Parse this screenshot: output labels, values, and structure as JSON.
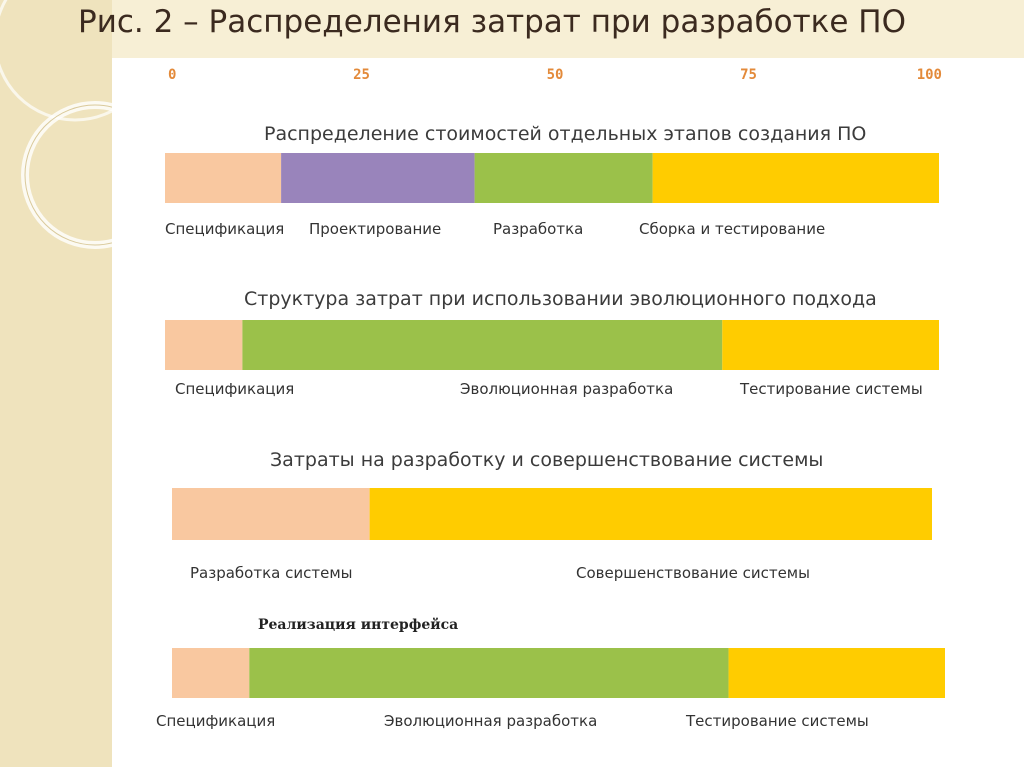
{
  "slide_title": "Рис.  2 – Распределения затрат при разработке ПО",
  "colors": {
    "spec": "#f9c8a0",
    "design": "#9984bb",
    "dev": "#9bc14a",
    "test": "#ffcc00"
  },
  "chart_data": {
    "type": "bar",
    "orientation": "horizontal-stacked",
    "title": "Рис.  2 – Распределения затрат при разработке ПО",
    "xlim": [
      0,
      100
    ],
    "xticks": [
      "0",
      "25",
      "50",
      "75",
      "100"
    ],
    "grid": false,
    "panels": [
      {
        "title": "Распределение стоимостей отдельных этапов создания ПО",
        "segments": [
          {
            "label": "Спецификация",
            "value": 15,
            "color": "#f9c8a0"
          },
          {
            "label": "Проектирование",
            "value": 25,
            "color": "#9984bb"
          },
          {
            "label": "Разработка",
            "value": 23,
            "color": "#9bc14a"
          },
          {
            "label": "Сборка и тестирование",
            "value": 37,
            "color": "#ffcc00"
          }
        ]
      },
      {
        "title": "Структура затрат при использовании эволюционного подхода",
        "segments": [
          {
            "label": "Спецификация",
            "value": 10,
            "color": "#f9c8a0"
          },
          {
            "label": "Эволюционная разработка",
            "value": 62,
            "color": "#9bc14a"
          },
          {
            "label": "Тестирование системы",
            "value": 28,
            "color": "#ffcc00"
          }
        ]
      },
      {
        "title": "Затраты на разработку и совершенствование системы",
        "segments": [
          {
            "label": "Разработка системы",
            "value": 26,
            "color": "#f9c8a0"
          },
          {
            "label": "Совершенствование системы",
            "value": 74,
            "color": "#ffcc00"
          }
        ]
      },
      {
        "title": "Реализация интерфейса",
        "segments": [
          {
            "label": "Спецификация",
            "value": 10,
            "color": "#f9c8a0"
          },
          {
            "label": "Эволюционная разработка",
            "value": 62,
            "color": "#9bc14a"
          },
          {
            "label": "Тестирование системы",
            "value": 28,
            "color": "#ffcc00"
          }
        ]
      }
    ]
  }
}
